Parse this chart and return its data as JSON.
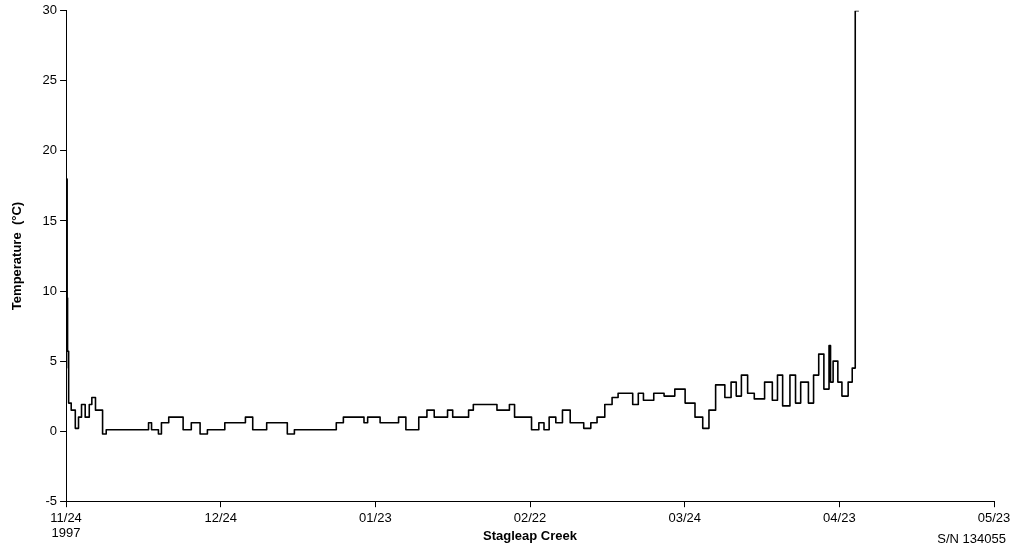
{
  "chart_data": {
    "type": "step",
    "xlabel": "Stagleap Creek",
    "ylabel": "Temperature  (°C)",
    "annotations": [
      "S/N 134055"
    ],
    "grid": false,
    "legend": false,
    "marker": "none",
    "line_style": "solid",
    "xlim": [
      "1997-11-24",
      "1998-05-23"
    ],
    "xticks": [
      {
        "value": "1997-11-24",
        "label": "11/24\n1997"
      },
      {
        "value": "1997-12-24",
        "label": "12/24"
      },
      {
        "value": "1998-01-23",
        "label": "01/23"
      },
      {
        "value": "1998-02-22",
        "label": "02/22"
      },
      {
        "value": "1998-03-24",
        "label": "03/24"
      },
      {
        "value": "1998-04-23",
        "label": "04/23"
      },
      {
        "value": "1998-05-23",
        "label": "05/23"
      }
    ],
    "ylim": [
      -5,
      30
    ],
    "yticks": [
      -5,
      0,
      5,
      10,
      15,
      20,
      25,
      30
    ],
    "series": [
      {
        "color": "#000000",
        "x": [
          "1997-11-24T00:00",
          "1997-11-24T02:00",
          "1997-11-24T05:00",
          "1997-11-24T07:00",
          "1997-11-24T12:00",
          "1997-11-25T00:00",
          "1997-11-25T19:00",
          "1997-11-26T10:00",
          "1997-11-27T00:00",
          "1997-11-27T17:00",
          "1997-11-28T12:00",
          "1997-11-29T00:00",
          "1997-11-29T17:00",
          "1997-12-01T02:00",
          "1997-12-01T19:00",
          "1997-12-10T00:00",
          "1997-12-10T14:00",
          "1997-12-11T22:00",
          "1997-12-12T12:00",
          "1997-12-13T22:00",
          "1997-12-16T17:00",
          "1997-12-18T07:00",
          "1997-12-20T00:00",
          "1997-12-21T10:00",
          "1997-12-24T19:00",
          "1997-12-28T19:00",
          "1997-12-30T05:00",
          "1998-01-01T22:00",
          "1998-01-05T22:00",
          "1998-01-07T07:00",
          "1998-01-15T10:00",
          "1998-01-16T19:00",
          "1998-01-20T19:00",
          "1998-01-21T12:00",
          "1998-01-23T22:00",
          "1998-01-27T12:00",
          "1998-01-28T22:00",
          "1998-01-31T10:00",
          "1998-02-02T00:00",
          "1998-02-03T10:00",
          "1998-02-06T00:00",
          "1998-02-07T00:00",
          "1998-02-10T02:00",
          "1998-02-11T00:00",
          "1998-02-15T14:00",
          "1998-02-18T00:00",
          "1998-02-19T00:00",
          "1998-02-22T07:00",
          "1998-02-23T17:00",
          "1998-02-24T17:00",
          "1998-02-25T17:00",
          "1998-02-27T00:00",
          "1998-02-28T07:00",
          "1998-03-01T19:00",
          "1998-03-04T10:00",
          "1998-03-05T19:00",
          "1998-03-07T00:00",
          "1998-03-08T12:00",
          "1998-03-09T22:00",
          "1998-03-11T02:00",
          "1998-03-13T22:00",
          "1998-03-15T00:00",
          "1998-03-16T00:00",
          "1998-03-18T00:00",
          "1998-03-20T00:00",
          "1998-03-22T02:00",
          "1998-03-24T02:00",
          "1998-03-26T00:00",
          "1998-03-27T12:00",
          "1998-03-28T17:00",
          "1998-03-30T00:00",
          "1998-03-31T19:00",
          "1998-04-02T00:00",
          "1998-04-03T00:00",
          "1998-04-04T00:00",
          "1998-04-05T05:00",
          "1998-04-06T12:00",
          "1998-04-08T12:00",
          "1998-04-10T00:00",
          "1998-04-11T00:00",
          "1998-04-12T00:00",
          "1998-04-13T10:00",
          "1998-04-14T12:00",
          "1998-04-15T12:00",
          "1998-04-17T00:00",
          "1998-04-18T00:00",
          "1998-04-19T00:00",
          "1998-04-20T00:00",
          "1998-04-21T00:00",
          "1998-04-21T07:00",
          "1998-04-21T19:00",
          "1998-04-22T17:00",
          "1998-04-23T12:00",
          "1998-04-24T17:00",
          "1998-04-25T12:00",
          "1998-04-26T02:00",
          "1998-04-26T19:00"
        ],
        "values": [
          18.4,
          4.5,
          18,
          9.5,
          5.7,
          2,
          1.5,
          0.2,
          1,
          1.9,
          1,
          1.9,
          2.4,
          1.5,
          -0.2,
          0.1,
          0.6,
          0.1,
          -0.2,
          0.6,
          1,
          0.1,
          0.6,
          -0.2,
          0.1,
          0.6,
          1,
          0.1,
          0.6,
          -0.2,
          0.1,
          0.6,
          1,
          0.6,
          1,
          0.6,
          1,
          0.1,
          1,
          1.5,
          1,
          1.5,
          1,
          1.5,
          1.9,
          1.5,
          1.9,
          1,
          0.1,
          0.6,
          0.1,
          1,
          0.6,
          1.5,
          0.6,
          0.2,
          0.6,
          1,
          1.9,
          2.4,
          2.7,
          1.9,
          2.7,
          2.2,
          2.7,
          2.5,
          3,
          2,
          1,
          0.2,
          1.5,
          3.3,
          2.4,
          3.5,
          2.5,
          4,
          2.7,
          2.3,
          3.5,
          2.2,
          4,
          1.8,
          4,
          2,
          3.5,
          2,
          4,
          5.5,
          3,
          6.1,
          3.5,
          5,
          3.5,
          2.5,
          3.5,
          4.5,
          30
        ]
      }
    ]
  }
}
